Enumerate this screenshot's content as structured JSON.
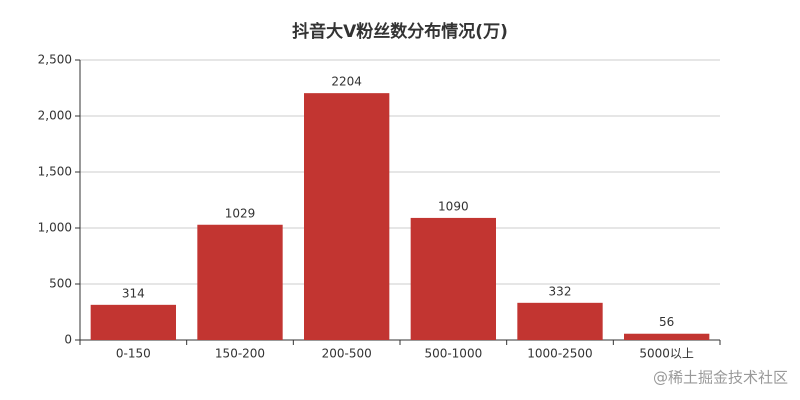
{
  "chart_data": {
    "type": "bar",
    "title": "抖音大V粉丝数分布情况(万)",
    "categories": [
      "0-150",
      "150-200",
      "200-500",
      "500-1000",
      "1000-2500",
      "5000以上"
    ],
    "values": [
      314,
      1029,
      2204,
      1090,
      332,
      56
    ],
    "color": "#c23531",
    "ylim": [
      0,
      2500
    ],
    "yticks": [
      0,
      500,
      {
        "value": 1000,
        "label": "1,000"
      },
      {
        "value": 1500,
        "label": "1,500"
      },
      {
        "value": 2000,
        "label": "2,000"
      },
      {
        "value": 2500,
        "label": "2,500"
      }
    ],
    "grid": true,
    "watermark": "@稀土掘金技术社区"
  }
}
